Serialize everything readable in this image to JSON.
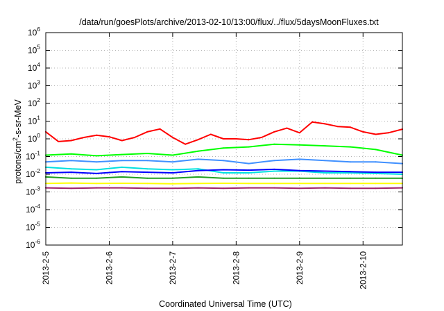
{
  "chart_data": {
    "type": "line",
    "title": "/data/run/goesPlots/archive/2013-02-10/13:00/flux/../flux/5daysMoonFluxes.txt",
    "xlabel": "Coordinated Universal Time (UTC)",
    "ylabel_parts": [
      "protons/cm",
      "2",
      "-s-sr-MeV"
    ],
    "xlim": [
      0,
      5.62
    ],
    "x_unit": "days since 2013-2-5",
    "x_ticks": [
      {
        "x": 0,
        "label": "2013-2-5"
      },
      {
        "x": 1,
        "label": "2013-2-6"
      },
      {
        "x": 2,
        "label": "2013-2-7"
      },
      {
        "x": 3,
        "label": "2013-2-8"
      },
      {
        "x": 4,
        "label": "2013-2-9"
      },
      {
        "x": 5,
        "label": "2013-2-10"
      }
    ],
    "y_scale": "log",
    "ylim_exp": [
      -6,
      6
    ],
    "y_ticks": [
      {
        "exp": 6,
        "base": "10",
        "sup": "6"
      },
      {
        "exp": 5,
        "base": "10",
        "sup": "5"
      },
      {
        "exp": 4,
        "base": "10",
        "sup": "4"
      },
      {
        "exp": 3,
        "base": "10",
        "sup": "3"
      },
      {
        "exp": 2,
        "base": "10",
        "sup": "2"
      },
      {
        "exp": 1,
        "base": "10",
        "sup": "1"
      },
      {
        "exp": 0,
        "base": "10",
        "sup": "0"
      },
      {
        "exp": -1,
        "base": "10",
        "sup": "-1"
      },
      {
        "exp": -2,
        "base": "10",
        "sup": "-2"
      },
      {
        "exp": -3,
        "base": "10",
        "sup": "-3"
      },
      {
        "exp": -4,
        "base": "10",
        "sup": "-4"
      },
      {
        "exp": -5,
        "base": "10",
        "sup": "-5"
      },
      {
        "exp": -6,
        "base": "10",
        "sup": "-6"
      }
    ],
    "grid": true,
    "series": [
      {
        "color": "#ff0000",
        "x": [
          0,
          0.2,
          0.4,
          0.6,
          0.8,
          1.0,
          1.2,
          1.4,
          1.6,
          1.8,
          2.0,
          2.2,
          2.4,
          2.6,
          2.8,
          3.0,
          3.2,
          3.4,
          3.6,
          3.8,
          4.0,
          4.2,
          4.4,
          4.6,
          4.8,
          5.0,
          5.2,
          5.4,
          5.62
        ],
        "y": [
          2.5,
          0.7,
          0.8,
          1.2,
          1.6,
          1.3,
          0.8,
          1.2,
          2.5,
          3.6,
          1.2,
          0.5,
          0.9,
          1.8,
          1.0,
          1.0,
          0.9,
          1.2,
          2.5,
          4.0,
          2.2,
          9.0,
          7.0,
          5.0,
          4.5,
          2.5,
          1.8,
          2.2,
          3.5
        ]
      },
      {
        "color": "#00ff00",
        "x": [
          0,
          0.4,
          0.8,
          1.2,
          1.6,
          2.0,
          2.4,
          2.8,
          3.2,
          3.6,
          4.0,
          4.4,
          4.8,
          5.2,
          5.62
        ],
        "y": [
          0.12,
          0.14,
          0.11,
          0.13,
          0.15,
          0.12,
          0.2,
          0.3,
          0.35,
          0.5,
          0.45,
          0.4,
          0.35,
          0.25,
          0.12
        ]
      },
      {
        "color": "#4090ff",
        "x": [
          0,
          0.4,
          0.8,
          1.2,
          1.6,
          2.0,
          2.4,
          2.8,
          3.2,
          3.6,
          4.0,
          4.4,
          4.8,
          5.2,
          5.62
        ],
        "y": [
          0.05,
          0.06,
          0.05,
          0.06,
          0.06,
          0.05,
          0.07,
          0.06,
          0.04,
          0.06,
          0.07,
          0.06,
          0.05,
          0.05,
          0.04
        ]
      },
      {
        "color": "#00e0e0",
        "x": [
          0,
          0.4,
          0.8,
          1.2,
          1.6,
          2.0,
          2.4,
          2.8,
          3.2,
          3.6,
          4.0,
          4.4,
          4.8,
          5.2,
          5.62
        ],
        "y": [
          0.025,
          0.02,
          0.018,
          0.025,
          0.02,
          0.018,
          0.02,
          0.012,
          0.012,
          0.015,
          0.015,
          0.012,
          0.012,
          0.011,
          0.01
        ]
      },
      {
        "color": "#0000ff",
        "x": [
          0,
          0.4,
          0.8,
          1.2,
          1.6,
          2.0,
          2.4,
          2.8,
          3.2,
          3.6,
          4.0,
          4.4,
          4.8,
          5.2,
          5.62
        ],
        "y": [
          0.012,
          0.013,
          0.011,
          0.014,
          0.013,
          0.012,
          0.016,
          0.018,
          0.017,
          0.019,
          0.016,
          0.015,
          0.014,
          0.013,
          0.013
        ]
      },
      {
        "color": "#20a020",
        "x": [
          0,
          0.4,
          0.8,
          1.2,
          1.6,
          2.0,
          2.4,
          2.8,
          3.2,
          3.6,
          4.0,
          4.4,
          4.8,
          5.2,
          5.62
        ],
        "y": [
          0.007,
          0.006,
          0.006,
          0.007,
          0.006,
          0.006,
          0.007,
          0.006,
          0.006,
          0.006,
          0.006,
          0.006,
          0.006,
          0.006,
          0.006
        ]
      },
      {
        "color": "#ffff00",
        "x": [
          0,
          0.4,
          0.8,
          1.2,
          1.6,
          2.0,
          2.4,
          2.8,
          3.2,
          3.6,
          4.0,
          4.4,
          4.8,
          5.2,
          5.62
        ],
        "y": [
          0.003,
          0.0032,
          0.003,
          0.0031,
          0.003,
          0.0029,
          0.003,
          0.0031,
          0.003,
          0.003,
          0.003,
          0.003,
          0.003,
          0.003,
          0.003
        ]
      },
      {
        "color": "#a0206a",
        "x": [
          0,
          0.4,
          0.8,
          1.2,
          1.6,
          2.0,
          2.4,
          2.8,
          3.2,
          3.6,
          4.0,
          4.4,
          4.8,
          5.2,
          5.62
        ],
        "y": [
          0.0017,
          0.0016,
          0.0017,
          0.0017,
          0.0016,
          0.0016,
          0.0017,
          0.0016,
          0.0017,
          0.0017,
          0.0016,
          0.0017,
          0.0016,
          0.0016,
          0.0017
        ]
      }
    ]
  }
}
